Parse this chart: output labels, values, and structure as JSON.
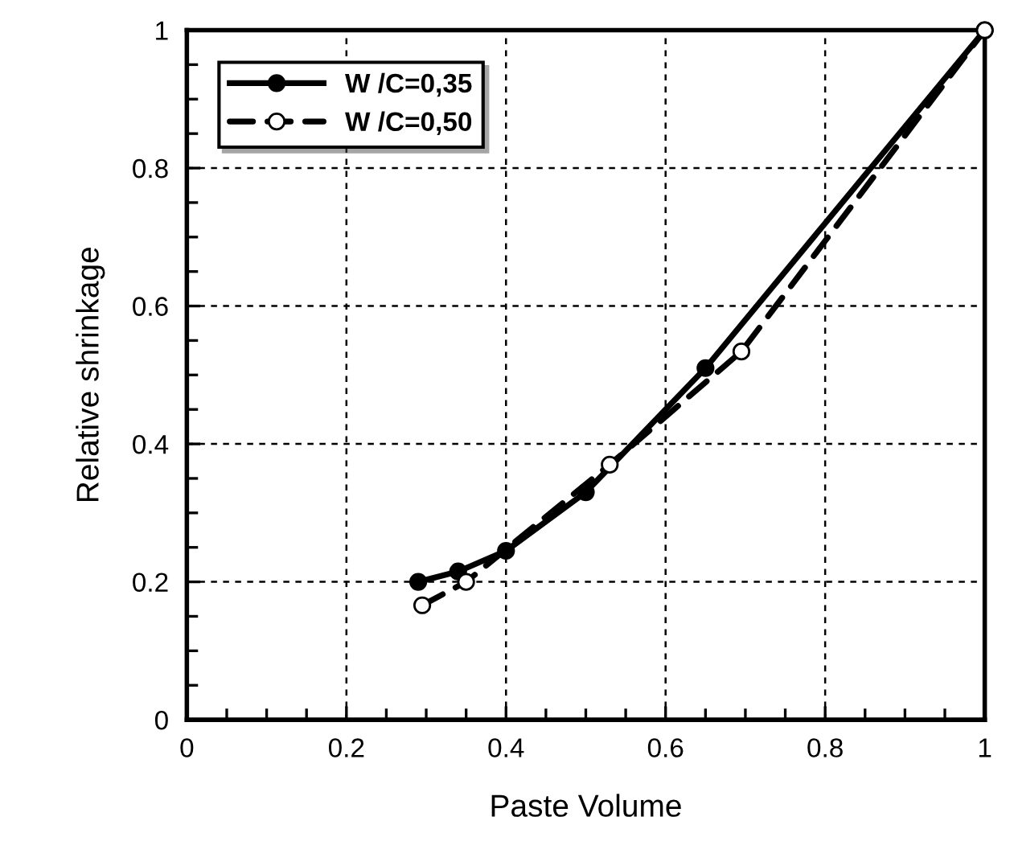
{
  "chart_data": {
    "type": "line",
    "xlabel": "Paste Volume",
    "ylabel": "Relative shrinkage",
    "xlim": [
      0,
      1
    ],
    "ylim": [
      0,
      1
    ],
    "xticks": [
      0,
      0.2,
      0.4,
      0.6,
      0.8,
      1
    ],
    "yticks": [
      0,
      0.2,
      0.4,
      0.6,
      0.8,
      1
    ],
    "grid": true,
    "legend": "top left",
    "series": [
      {
        "name": "W /C=0,35",
        "color": "#000000",
        "marker": "circle",
        "line_style": "solid",
        "x": [
          0.29,
          0.34,
          0.4,
          0.5,
          0.65,
          1
        ],
        "values": [
          0.2,
          0.215,
          0.245,
          0.33,
          0.51,
          1
        ]
      },
      {
        "name": "W /C=0,50",
        "color": "#000000",
        "marker": "circle",
        "line_style": "dashed",
        "x": [
          0.295,
          0.35,
          0.53,
          0.695,
          1
        ],
        "values": [
          0.166,
          0.2,
          0.37,
          0.534,
          1
        ]
      }
    ]
  }
}
